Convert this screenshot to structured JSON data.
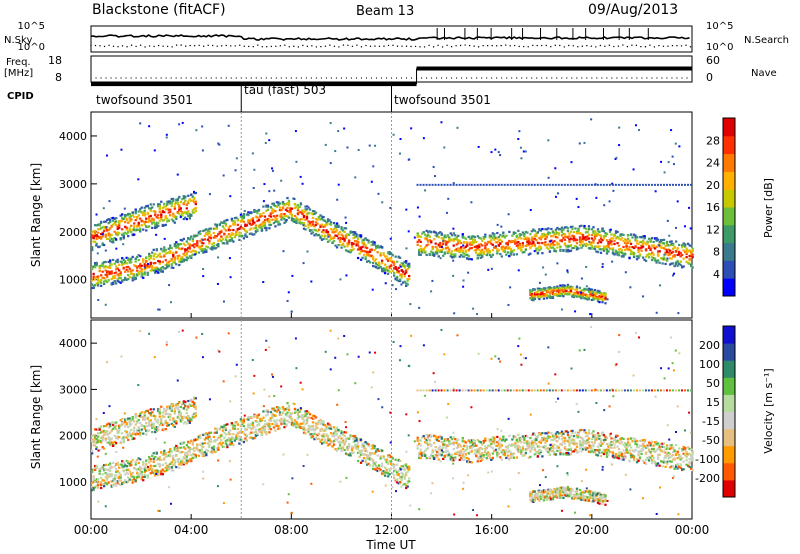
{
  "header": {
    "station": "Blackstone (fitACF)",
    "beam": "Beam 13",
    "date": "09/Aug/2013"
  },
  "noise_panel": {
    "left_label": "N.Sky",
    "right_label": "N.Search",
    "left_ticks": [
      "10^5",
      "10^0"
    ],
    "right_ticks": [
      "10^5",
      "10^0"
    ]
  },
  "freq_panel": {
    "left_label_1": "Freq.",
    "left_label_2": "[MHz]",
    "right_label": "Nave",
    "left_ticks": [
      "18",
      "8"
    ],
    "right_ticks": [
      "60",
      "0"
    ]
  },
  "cpid": {
    "label": "CPID",
    "segments": [
      {
        "name": "twofsound 3501",
        "start": 0
      },
      {
        "name": "tau (fast) 503",
        "start": 6
      },
      {
        "name": "twofsound 3501",
        "start": 12
      }
    ]
  },
  "power_panel": {
    "ylabel": "Slant Range [km]",
    "yticks": [
      "1000",
      "2000",
      "3000",
      "4000"
    ],
    "colorbar_label": "Power [dB]",
    "colorbar_ticks": [
      "4",
      "8",
      "12",
      "16",
      "20",
      "24",
      "28"
    ],
    "colorbar_colors": [
      "#0000ff",
      "#2b4fb5",
      "#3a7a8c",
      "#3e9a66",
      "#6bbf3a",
      "#c8c800",
      "#ffb000",
      "#ff7a00",
      "#ff3000",
      "#e00000"
    ]
  },
  "velocity_panel": {
    "ylabel": "Slant Range [km]",
    "yticks": [
      "1000",
      "2000",
      "3000",
      "4000"
    ],
    "colorbar_label": "Velocity [m s⁻¹]",
    "colorbar_ticks": [
      "-200",
      "-100",
      "-50",
      "-15",
      "15",
      "50",
      "100",
      "200"
    ],
    "colorbar_colors": [
      "#e00000",
      "#ff5a00",
      "#ff9a00",
      "#e6c080",
      "#cfcfcf",
      "#b8dca0",
      "#60c040",
      "#2f8a6a",
      "#2a4aa0",
      "#1010d0"
    ]
  },
  "x_axis": {
    "label": "Time UT",
    "ticks": [
      "00:00",
      "04:00",
      "08:00",
      "12:00",
      "16:00",
      "20:00",
      "00:00"
    ]
  },
  "chart_data": {
    "type": "heatmap",
    "title": "Blackstone (fitACF)",
    "subtitle": "Beam 13 09/Aug/2013",
    "xlabel": "Time UT",
    "ylabel": "Slant Range [km]",
    "xlim": [
      0,
      24
    ],
    "ylim": [
      200,
      4500
    ],
    "x_ticks": [
      "00:00",
      "04:00",
      "08:00",
      "12:00",
      "16:00",
      "20:00",
      "00:00"
    ],
    "freq_steps": [
      {
        "start_hour": 0,
        "freq_mhz": 9.5
      },
      {
        "start_hour": 13,
        "freq_mhz": 15.5
      }
    ],
    "power_db_range": [
      0,
      32
    ],
    "velocity_range": [
      -250,
      250
    ],
    "echo_bands": [
      {
        "name": "band A",
        "hours": [
          0,
          12.7
        ],
        "range_km": [
          1100,
          1250,
          1500,
          1900,
          2200,
          2500,
          2000,
          1600,
          1100
        ]
      },
      {
        "name": "band B",
        "hours": [
          0,
          4.2
        ],
        "range_km": [
          1900,
          2300,
          2600
        ]
      },
      {
        "name": "band C",
        "hours": [
          13,
          24
        ],
        "range_km": [
          1800,
          1700,
          1800,
          1900,
          1700,
          1500
        ]
      },
      {
        "name": "band D",
        "hours": [
          17.5,
          20.5
        ],
        "range_km": [
          700,
          800,
          650
        ]
      }
    ]
  }
}
